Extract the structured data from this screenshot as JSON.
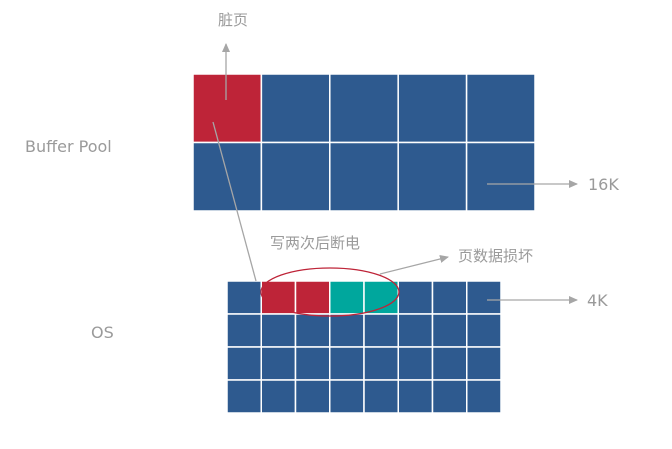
{
  "labels": {
    "buffer_pool": "Buffer Pool",
    "os": "OS",
    "dirty_page": "脏页",
    "size_16k": "16K",
    "size_4k": "4K",
    "write_twice_crash": "写两次后断电",
    "page_data_corrupt": "页数据损坏"
  },
  "buffer_pool_grid": {
    "rows": 2,
    "cols": 5,
    "dirty_cells": [
      [
        0,
        0
      ]
    ]
  },
  "os_grid": {
    "rows": 4,
    "cols": 8,
    "written_cells": [
      [
        0,
        1
      ],
      [
        0,
        2
      ]
    ],
    "unwritten_cells": [
      [
        0,
        3
      ],
      [
        0,
        4
      ]
    ]
  },
  "colors": {
    "cell": "#2e5a8f",
    "grid_line": "#ffffff",
    "dirty": "#be2438",
    "unwritten": "#00a79d",
    "arrow": "#a6a6a6",
    "ellipse": "#be2438",
    "label_text": "#9a9a9a"
  }
}
